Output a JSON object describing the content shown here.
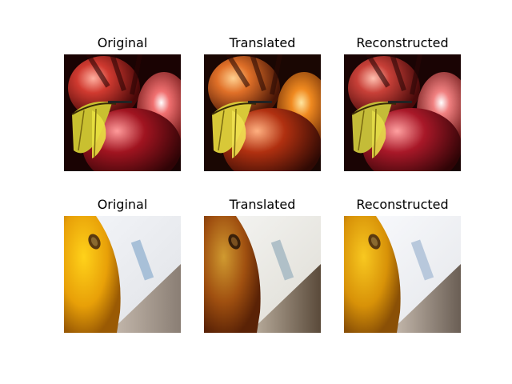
{
  "figure": {
    "rows": [
      {
        "scene": "apple",
        "panels": [
          {
            "title": "Original",
            "variant": "original"
          },
          {
            "title": "Translated",
            "variant": "translated"
          },
          {
            "title": "Reconstructed",
            "variant": "reconstructed"
          }
        ]
      },
      {
        "scene": "orange",
        "panels": [
          {
            "title": "Original",
            "variant": "original"
          },
          {
            "title": "Translated",
            "variant": "translated"
          },
          {
            "title": "Reconstructed",
            "variant": "reconstructed"
          }
        ]
      }
    ]
  }
}
